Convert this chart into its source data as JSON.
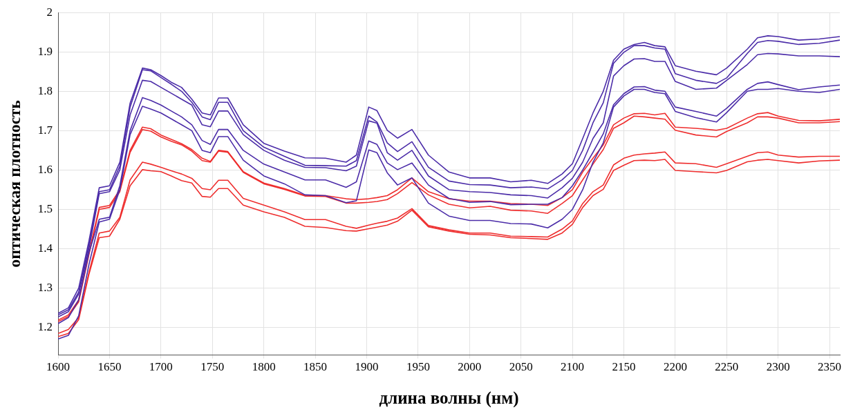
{
  "chart_data": {
    "type": "line",
    "xlabel": "длина волны (нм)",
    "ylabel": "оптическая плотность",
    "grid": true,
    "legend": false,
    "marker": "none",
    "line_style": "solid",
    "xlim": [
      1600,
      2360
    ],
    "xticks": [
      1600,
      1650,
      1700,
      1750,
      1800,
      1850,
      1900,
      1950,
      2000,
      2050,
      2100,
      2150,
      2200,
      2250,
      2300,
      2350
    ],
    "ylim": [
      1.13,
      2.0
    ],
    "yticks": [
      1.2,
      1.3,
      1.4,
      1.5,
      1.6,
      1.7,
      1.8,
      1.9,
      2
    ],
    "x": [
      1600,
      1610,
      1620,
      1630,
      1640,
      1650,
      1660,
      1670,
      1682,
      1690,
      1700,
      1710,
      1720,
      1730,
      1740,
      1748,
      1756,
      1765,
      1780,
      1800,
      1820,
      1840,
      1860,
      1880,
      1890,
      1902,
      1910,
      1920,
      1930,
      1944,
      1960,
      1980,
      2000,
      2020,
      2040,
      2060,
      2076,
      2090,
      2100,
      2110,
      2120,
      2130,
      2140,
      2150,
      2160,
      2170,
      2180,
      2190,
      2200,
      2220,
      2240,
      2250,
      2270,
      2280,
      2290,
      2300,
      2320,
      2340,
      2360
    ],
    "series": [
      {
        "color": "#4b2ca8",
        "values": [
          1.236,
          1.25,
          1.3,
          1.42,
          1.555,
          1.56,
          1.62,
          1.77,
          1.859,
          1.855,
          1.84,
          1.823,
          1.81,
          1.78,
          1.745,
          1.74,
          1.783,
          1.783,
          1.715,
          1.668,
          1.648,
          1.631,
          1.63,
          1.62,
          1.638,
          1.76,
          1.751,
          1.701,
          1.681,
          1.703,
          1.638,
          1.595,
          1.58,
          1.58,
          1.57,
          1.574,
          1.566,
          1.59,
          1.616,
          1.68,
          1.745,
          1.8,
          1.879,
          1.907,
          1.919,
          1.924,
          1.916,
          1.913,
          1.865,
          1.851,
          1.842,
          1.859,
          1.907,
          1.936,
          1.941,
          1.939,
          1.93,
          1.933,
          1.939
        ]
      },
      {
        "color": "#4b2ca8",
        "values": [
          1.232,
          1.245,
          1.29,
          1.41,
          1.545,
          1.55,
          1.61,
          1.76,
          1.855,
          1.852,
          1.835,
          1.818,
          1.8,
          1.772,
          1.735,
          1.728,
          1.772,
          1.772,
          1.7,
          1.658,
          1.635,
          1.612,
          1.611,
          1.61,
          1.624,
          1.737,
          1.722,
          1.669,
          1.647,
          1.672,
          1.607,
          1.572,
          1.563,
          1.562,
          1.555,
          1.557,
          1.552,
          1.575,
          1.599,
          1.65,
          1.72,
          1.771,
          1.871,
          1.899,
          1.916,
          1.916,
          1.91,
          1.907,
          1.845,
          1.828,
          1.82,
          1.834,
          1.896,
          1.924,
          1.929,
          1.927,
          1.919,
          1.922,
          1.93
        ]
      },
      {
        "color": "#4b2ca8",
        "values": [
          1.227,
          1.24,
          1.285,
          1.4,
          1.54,
          1.545,
          1.6,
          1.74,
          1.828,
          1.825,
          1.81,
          1.795,
          1.78,
          1.765,
          1.715,
          1.71,
          1.75,
          1.75,
          1.69,
          1.65,
          1.625,
          1.607,
          1.606,
          1.598,
          1.61,
          1.725,
          1.719,
          1.644,
          1.625,
          1.65,
          1.585,
          1.55,
          1.545,
          1.543,
          1.537,
          1.535,
          1.529,
          1.555,
          1.579,
          1.62,
          1.68,
          1.72,
          1.839,
          1.865,
          1.882,
          1.883,
          1.876,
          1.876,
          1.825,
          1.805,
          1.808,
          1.828,
          1.868,
          1.893,
          1.896,
          1.895,
          1.89,
          1.89,
          1.888
        ]
      },
      {
        "color": "#4b2ca8",
        "values": [
          1.21,
          1.225,
          1.27,
          1.39,
          1.475,
          1.48,
          1.56,
          1.7,
          1.784,
          1.777,
          1.765,
          1.75,
          1.735,
          1.715,
          1.675,
          1.665,
          1.703,
          1.703,
          1.65,
          1.615,
          1.595,
          1.575,
          1.575,
          1.556,
          1.57,
          1.674,
          1.665,
          1.618,
          1.601,
          1.618,
          1.562,
          1.528,
          1.518,
          1.52,
          1.512,
          1.513,
          1.513,
          1.53,
          1.56,
          1.6,
          1.645,
          1.692,
          1.766,
          1.794,
          1.811,
          1.812,
          1.803,
          1.8,
          1.76,
          1.749,
          1.737,
          1.757,
          1.805,
          1.82,
          1.824,
          1.817,
          1.804,
          1.811,
          1.816
        ]
      },
      {
        "color": "#4b2ca8",
        "values": [
          1.171,
          1.18,
          1.23,
          1.36,
          1.468,
          1.475,
          1.55,
          1.69,
          1.762,
          1.755,
          1.745,
          1.73,
          1.715,
          1.7,
          1.65,
          1.644,
          1.685,
          1.685,
          1.625,
          1.585,
          1.565,
          1.537,
          1.535,
          1.517,
          1.522,
          1.651,
          1.644,
          1.593,
          1.562,
          1.58,
          1.516,
          1.483,
          1.472,
          1.472,
          1.464,
          1.463,
          1.453,
          1.475,
          1.5,
          1.55,
          1.62,
          1.669,
          1.76,
          1.788,
          1.805,
          1.805,
          1.797,
          1.794,
          1.749,
          1.733,
          1.722,
          1.746,
          1.8,
          1.805,
          1.805,
          1.807,
          1.8,
          1.797,
          1.805
        ]
      },
      {
        "color": "#ee2d2d",
        "values": [
          1.219,
          1.232,
          1.27,
          1.39,
          1.505,
          1.51,
          1.55,
          1.65,
          1.709,
          1.705,
          1.689,
          1.678,
          1.667,
          1.652,
          1.63,
          1.622,
          1.65,
          1.647,
          1.596,
          1.567,
          1.553,
          1.536,
          1.535,
          1.527,
          1.525,
          1.527,
          1.53,
          1.535,
          1.55,
          1.58,
          1.545,
          1.527,
          1.521,
          1.521,
          1.515,
          1.513,
          1.51,
          1.53,
          1.55,
          1.595,
          1.63,
          1.664,
          1.715,
          1.732,
          1.743,
          1.744,
          1.74,
          1.744,
          1.709,
          1.706,
          1.701,
          1.706,
          1.732,
          1.743,
          1.746,
          1.737,
          1.726,
          1.725,
          1.729
        ]
      },
      {
        "color": "#ee2d2d",
        "values": [
          1.215,
          1.228,
          1.265,
          1.385,
          1.5,
          1.505,
          1.545,
          1.645,
          1.703,
          1.699,
          1.684,
          1.673,
          1.664,
          1.648,
          1.624,
          1.62,
          1.648,
          1.645,
          1.594,
          1.565,
          1.551,
          1.534,
          1.533,
          1.516,
          1.516,
          1.518,
          1.52,
          1.525,
          1.54,
          1.568,
          1.537,
          1.513,
          1.504,
          1.508,
          1.498,
          1.496,
          1.49,
          1.515,
          1.535,
          1.575,
          1.615,
          1.652,
          1.706,
          1.72,
          1.737,
          1.735,
          1.732,
          1.729,
          1.701,
          1.689,
          1.684,
          1.698,
          1.72,
          1.735,
          1.735,
          1.732,
          1.72,
          1.72,
          1.723
        ]
      },
      {
        "color": "#ee2d2d",
        "values": [
          1.185,
          1.195,
          1.225,
          1.34,
          1.44,
          1.445,
          1.48,
          1.575,
          1.62,
          1.615,
          1.607,
          1.598,
          1.59,
          1.579,
          1.553,
          1.55,
          1.574,
          1.574,
          1.528,
          1.511,
          1.494,
          1.474,
          1.474,
          1.457,
          1.452,
          1.46,
          1.465,
          1.47,
          1.478,
          1.502,
          1.459,
          1.448,
          1.44,
          1.44,
          1.432,
          1.431,
          1.43,
          1.45,
          1.471,
          1.515,
          1.545,
          1.562,
          1.613,
          1.63,
          1.638,
          1.641,
          1.643,
          1.646,
          1.618,
          1.616,
          1.607,
          1.616,
          1.635,
          1.644,
          1.646,
          1.638,
          1.633,
          1.635,
          1.635
        ]
      },
      {
        "color": "#ee2d2d",
        "values": [
          1.177,
          1.185,
          1.22,
          1.335,
          1.428,
          1.432,
          1.475,
          1.56,
          1.601,
          1.598,
          1.596,
          1.585,
          1.573,
          1.567,
          1.533,
          1.531,
          1.553,
          1.553,
          1.511,
          1.494,
          1.48,
          1.457,
          1.454,
          1.446,
          1.445,
          1.451,
          1.455,
          1.46,
          1.47,
          1.498,
          1.456,
          1.445,
          1.437,
          1.435,
          1.428,
          1.426,
          1.424,
          1.44,
          1.462,
          1.505,
          1.535,
          1.551,
          1.599,
          1.612,
          1.624,
          1.625,
          1.624,
          1.627,
          1.599,
          1.596,
          1.593,
          1.599,
          1.621,
          1.625,
          1.627,
          1.624,
          1.618,
          1.623,
          1.625
        ]
      }
    ]
  }
}
